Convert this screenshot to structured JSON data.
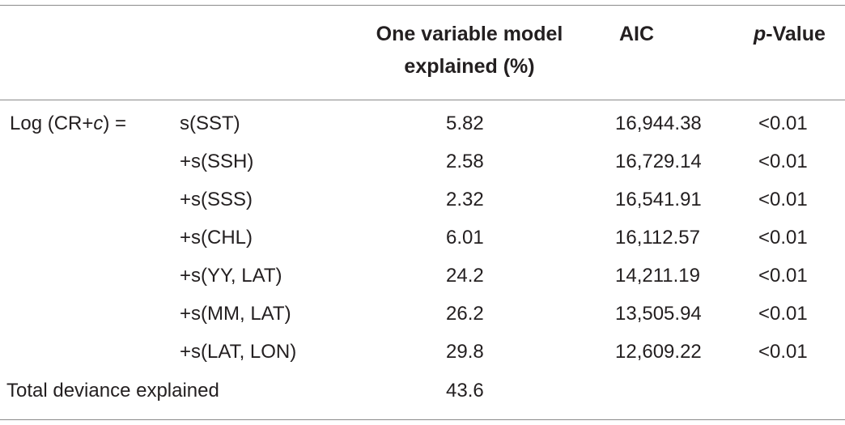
{
  "table": {
    "headers": {
      "explained_line1": "One variable model",
      "explained_line2": "explained (%)",
      "aic": "AIC",
      "pvalue_italic": "p",
      "pvalue_rest": "-Value"
    },
    "lhs": {
      "prefix": "Log (CR+",
      "var": "c",
      "suffix": ") ="
    },
    "rows": [
      {
        "term": "s(SST)",
        "explained": "5.82",
        "aic": "16,944.38",
        "p": "<0.01"
      },
      {
        "term": "+s(SSH)",
        "explained": "2.58",
        "aic": "16,729.14",
        "p": "<0.01"
      },
      {
        "term": "+s(SSS)",
        "explained": "2.32",
        "aic": "16,541.91",
        "p": "<0.01"
      },
      {
        "term": "+s(CHL)",
        "explained": "6.01",
        "aic": "16,112.57",
        "p": "<0.01"
      },
      {
        "term": "+s(YY, LAT)",
        "explained": "24.2",
        "aic": "14,211.19",
        "p": "<0.01"
      },
      {
        "term": "+s(MM, LAT)",
        "explained": "26.2",
        "aic": "13,505.94",
        "p": "<0.01"
      },
      {
        "term": "+s(LAT, LON)",
        "explained": "29.8",
        "aic": "12,609.22",
        "p": "<0.01"
      }
    ],
    "total": {
      "label": "Total deviance explained",
      "explained": "43.6"
    }
  }
}
